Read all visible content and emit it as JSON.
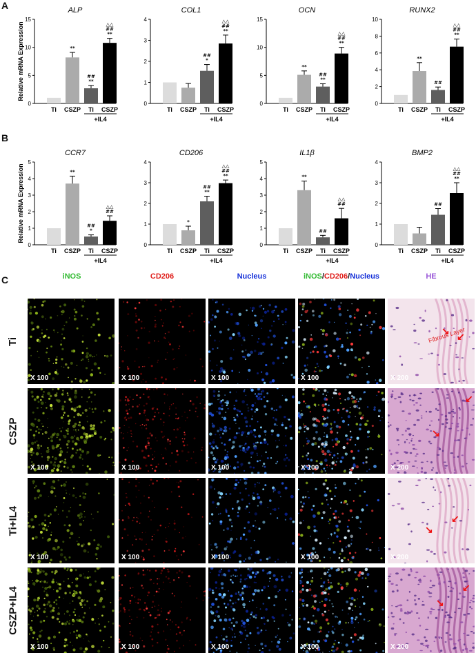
{
  "panels": {
    "a": "A",
    "b": "B",
    "c": "C"
  },
  "ylabel": "Relative mRNA Expression",
  "group_label": "+IL4",
  "charts": [
    {
      "title": "ALP",
      "ylim": [
        0,
        15
      ],
      "yticks": [
        "0",
        "5",
        "10",
        "15"
      ],
      "tick_values": [
        0,
        5,
        10,
        15
      ],
      "categories": [
        "Ti",
        "CSZP",
        "Ti",
        "CSZP"
      ],
      "values": [
        1.0,
        8.2,
        2.7,
        10.8
      ],
      "errors": [
        0,
        0.9,
        0.5,
        0.8
      ],
      "sig": [
        [],
        [
          "**"
        ],
        [
          "##",
          "**"
        ],
        [
          "△△",
          "##",
          "**"
        ]
      ]
    },
    {
      "title": "COL1",
      "ylim": [
        0,
        4
      ],
      "yticks": [
        "0",
        "1",
        "2",
        "3",
        "4"
      ],
      "tick_values": [
        0,
        1,
        2,
        3,
        4
      ],
      "categories": [
        "Ti",
        "CSZP",
        "Ti",
        "CSZP"
      ],
      "values": [
        1.0,
        0.75,
        1.55,
        2.85
      ],
      "errors": [
        0,
        0.2,
        0.3,
        0.4
      ],
      "sig": [
        [],
        [],
        [
          "##",
          "*"
        ],
        [
          "△△",
          "##",
          "**"
        ]
      ]
    },
    {
      "title": "OCN",
      "ylim": [
        0,
        15
      ],
      "yticks": [
        "0",
        "5",
        "10",
        "15"
      ],
      "tick_values": [
        0,
        5,
        10,
        15
      ],
      "categories": [
        "Ti",
        "CSZP",
        "Ti",
        "CSZP"
      ],
      "values": [
        1.0,
        5.1,
        3.0,
        8.9
      ],
      "errors": [
        0,
        0.7,
        0.5,
        1.1
      ],
      "sig": [
        [],
        [
          "**"
        ],
        [
          "##",
          "**"
        ],
        [
          "△△",
          "##",
          "**"
        ]
      ]
    },
    {
      "title": "RUNX2",
      "ylim": [
        0,
        10
      ],
      "yticks": [
        "0",
        "2",
        "4",
        "6",
        "8",
        "10"
      ],
      "tick_values": [
        0,
        2,
        4,
        6,
        8,
        10
      ],
      "categories": [
        "Ti",
        "CSZP",
        "Ti",
        "CSZP"
      ],
      "values": [
        1.0,
        3.85,
        1.6,
        6.75
      ],
      "errors": [
        0,
        1.0,
        0.35,
        0.9
      ],
      "sig": [
        [],
        [
          "**"
        ],
        [
          "##"
        ],
        [
          "△△",
          "##",
          "**"
        ]
      ]
    },
    {
      "title": "CCR7",
      "ylim": [
        0,
        5
      ],
      "yticks": [
        "0",
        "1",
        "2",
        "3",
        "4",
        "5"
      ],
      "tick_values": [
        0,
        1,
        2,
        3,
        4,
        5
      ],
      "categories": [
        "Ti",
        "CSZP",
        "Ti",
        "CSZP"
      ],
      "values": [
        1.0,
        3.7,
        0.5,
        1.45
      ],
      "errors": [
        0,
        0.45,
        0.1,
        0.3
      ],
      "sig": [
        [],
        [
          "**"
        ],
        [
          "##",
          "*"
        ],
        [
          "△△",
          "##"
        ]
      ]
    },
    {
      "title": "CD206",
      "ylim": [
        0,
        4
      ],
      "yticks": [
        "0",
        "1",
        "2",
        "3",
        "4"
      ],
      "tick_values": [
        0,
        1,
        2,
        3,
        4
      ],
      "categories": [
        "Ti",
        "CSZP",
        "Ti",
        "CSZP"
      ],
      "values": [
        1.0,
        0.7,
        2.1,
        2.98
      ],
      "errors": [
        0,
        0.2,
        0.25,
        0.15
      ],
      "sig": [
        [],
        [
          "*"
        ],
        [
          "##",
          "**"
        ],
        [
          "△△",
          "##",
          "**"
        ]
      ]
    },
    {
      "title": "IL1β",
      "ylim": [
        0,
        5
      ],
      "yticks": [
        "0",
        "1",
        "2",
        "3",
        "4",
        "5"
      ],
      "tick_values": [
        0,
        1,
        2,
        3,
        4,
        5
      ],
      "categories": [
        "Ti",
        "CSZP",
        "Ti",
        "CSZP"
      ],
      "values": [
        1.0,
        3.3,
        0.45,
        1.6
      ],
      "errors": [
        0,
        0.55,
        0.12,
        0.6
      ],
      "sig": [
        [],
        [
          "**"
        ],
        [
          "##"
        ],
        [
          "△△",
          "##"
        ]
      ]
    },
    {
      "title": "BMP2",
      "ylim": [
        0,
        4
      ],
      "yticks": [
        "0",
        "1",
        "2",
        "3",
        "4"
      ],
      "tick_values": [
        0,
        1,
        2,
        3,
        4
      ],
      "categories": [
        "Ti",
        "CSZP",
        "Ti",
        "CSZP"
      ],
      "values": [
        1.0,
        0.55,
        1.45,
        2.5
      ],
      "errors": [
        0,
        0.3,
        0.3,
        0.5
      ],
      "sig": [
        [],
        [],
        [
          "##"
        ],
        [
          "△△",
          "##",
          "**"
        ]
      ]
    }
  ],
  "chart_data": [
    {
      "type": "bar",
      "title": "ALP",
      "ylabel": "Relative mRNA Expression",
      "categories": [
        "Ti",
        "CSZP",
        "Ti +IL4",
        "CSZP +IL4"
      ],
      "values": [
        1.0,
        8.2,
        2.7,
        10.8
      ],
      "ylim": [
        0,
        15
      ]
    },
    {
      "type": "bar",
      "title": "COL1",
      "categories": [
        "Ti",
        "CSZP",
        "Ti +IL4",
        "CSZP +IL4"
      ],
      "values": [
        1.0,
        0.75,
        1.55,
        2.85
      ],
      "ylim": [
        0,
        4
      ]
    },
    {
      "type": "bar",
      "title": "OCN",
      "categories": [
        "Ti",
        "CSZP",
        "Ti +IL4",
        "CSZP +IL4"
      ],
      "values": [
        1.0,
        5.1,
        3.0,
        8.9
      ],
      "ylim": [
        0,
        15
      ]
    },
    {
      "type": "bar",
      "title": "RUNX2",
      "categories": [
        "Ti",
        "CSZP",
        "Ti +IL4",
        "CSZP +IL4"
      ],
      "values": [
        1.0,
        3.85,
        1.6,
        6.75
      ],
      "ylim": [
        0,
        10
      ]
    },
    {
      "type": "bar",
      "title": "CCR7",
      "ylabel": "Relative mRNA Expression",
      "categories": [
        "Ti",
        "CSZP",
        "Ti +IL4",
        "CSZP +IL4"
      ],
      "values": [
        1.0,
        3.7,
        0.5,
        1.45
      ],
      "ylim": [
        0,
        5
      ]
    },
    {
      "type": "bar",
      "title": "CD206",
      "categories": [
        "Ti",
        "CSZP",
        "Ti +IL4",
        "CSZP +IL4"
      ],
      "values": [
        1.0,
        0.7,
        2.1,
        2.98
      ],
      "ylim": [
        0,
        4
      ]
    },
    {
      "type": "bar",
      "title": "IL1β",
      "categories": [
        "Ti",
        "CSZP",
        "Ti +IL4",
        "CSZP +IL4"
      ],
      "values": [
        1.0,
        3.3,
        0.45,
        1.6
      ],
      "ylim": [
        0,
        5
      ]
    },
    {
      "type": "bar",
      "title": "BMP2",
      "categories": [
        "Ti",
        "CSZP",
        "Ti +IL4",
        "CSZP +IL4"
      ],
      "values": [
        1.0,
        0.55,
        1.45,
        2.5
      ],
      "ylim": [
        0,
        4
      ]
    }
  ],
  "bar_colors": [
    "#dcdcdc",
    "#ababab",
    "#5e5e5e",
    "#000000"
  ],
  "micro": {
    "columns": [
      {
        "label": "iNOS",
        "color": "#33bb33"
      },
      {
        "label": "CD206",
        "color": "#e0201c"
      },
      {
        "label": "Nucleus",
        "color": "#1530d8"
      },
      {
        "label_parts": [
          "iNOS",
          "/",
          "CD206",
          "/",
          "Nucleus"
        ],
        "colors": [
          "#33bb33",
          "#111111",
          "#e0201c",
          "#111111",
          "#1530d8"
        ]
      },
      {
        "label": "HE",
        "color": "#9a58d8"
      }
    ],
    "rows": [
      "Ti",
      "CSZP",
      "Ti+IL4",
      "CSZP+IL4"
    ],
    "mag_fluor": "X 100",
    "mag_he": "X 200",
    "fibrous_label": "Fibrous Layer"
  }
}
